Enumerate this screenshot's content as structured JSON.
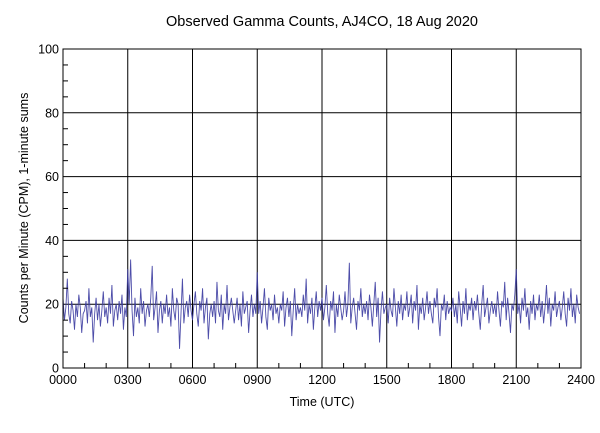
{
  "chart_data": {
    "type": "line",
    "title": "Observed Gamma Counts, AJ4CO, 18 Aug 2020",
    "xlabel": "Time (UTC)",
    "ylabel": "Counts per Minute (CPM), 1-minute sums",
    "xlim_minutes": [
      0,
      1440
    ],
    "ylim": [
      0,
      100
    ],
    "x_ticks": [
      "0000",
      "0300",
      "0600",
      "0900",
      "1200",
      "1500",
      "1800",
      "2100",
      "2400"
    ],
    "y_ticks": [
      "0",
      "20",
      "40",
      "60",
      "80",
      "100"
    ],
    "grid": true,
    "line_color": "#3a3aa0",
    "series": [
      {
        "name": "CPM",
        "x_start_minutes": 0,
        "x_step_minutes": 4,
        "values": [
          22,
          15,
          19,
          28,
          17,
          14,
          21,
          18,
          12,
          20,
          16,
          23,
          19,
          11,
          17,
          18,
          21,
          14,
          25,
          16,
          19,
          8,
          17,
          22,
          15,
          20,
          13,
          18,
          24,
          16,
          19,
          14,
          22,
          17,
          26,
          13,
          18,
          20,
          15,
          21,
          17,
          23,
          12,
          19,
          16,
          31,
          20,
          34,
          18,
          10,
          22,
          16,
          19,
          14,
          25,
          17,
          21,
          13,
          18,
          20,
          16,
          22,
          32,
          15,
          19,
          24,
          11,
          18,
          21,
          14,
          20,
          17,
          23,
          16,
          19,
          13,
          25,
          18,
          15,
          22,
          20,
          6,
          17,
          28,
          14,
          19,
          21,
          16,
          23,
          18,
          15,
          20,
          24,
          17,
          13,
          21,
          18,
          25,
          14,
          19,
          22,
          9,
          17,
          20,
          16,
          21,
          14,
          27,
          18,
          16,
          23,
          12,
          20,
          17,
          26,
          15,
          19,
          22,
          18,
          14,
          18,
          22,
          15,
          20,
          13,
          24,
          17,
          19,
          21,
          11,
          18,
          23,
          16,
          20,
          17,
          30,
          17,
          21,
          14,
          19,
          25,
          16,
          12,
          22,
          18,
          20,
          15,
          23,
          17,
          19,
          14,
          20,
          18,
          24,
          13,
          19,
          22,
          16,
          21,
          10,
          18,
          25,
          15,
          20,
          17,
          19,
          16,
          23,
          18,
          28,
          14,
          20,
          17,
          22,
          12,
          19,
          24,
          16,
          21,
          18,
          22,
          15,
          19,
          26,
          17,
          13,
          21,
          18,
          24,
          11,
          20,
          16,
          23,
          19,
          15,
          18,
          24,
          16,
          20,
          33,
          14,
          19,
          22,
          17,
          12,
          21,
          18,
          25,
          16,
          20,
          17,
          21,
          15,
          23,
          19,
          13,
          20,
          27,
          16,
          22,
          8,
          18,
          24,
          17,
          19,
          20,
          14,
          22,
          18,
          16,
          25,
          19,
          13,
          21,
          17,
          23,
          15,
          20,
          18,
          24,
          16,
          19,
          23,
          14,
          21,
          18,
          26,
          12,
          20,
          17,
          22,
          15,
          19,
          24,
          17,
          21,
          17,
          14,
          22,
          19,
          25,
          16,
          10,
          20,
          18,
          23,
          15,
          21,
          17,
          19,
          18,
          22,
          16,
          20,
          14,
          24,
          19,
          13,
          21,
          17,
          25,
          15,
          20,
          18,
          22,
          15,
          21,
          18,
          23,
          17,
          12,
          20,
          26,
          16,
          19,
          22,
          14,
          18,
          21,
          17,
          20,
          16,
          24,
          18,
          13,
          21,
          19,
          27,
          15,
          22,
          17,
          11,
          20,
          18,
          23,
          31,
          17,
          20,
          14,
          22,
          18,
          25,
          16,
          19,
          12,
          21,
          17,
          23,
          15,
          20,
          18,
          23,
          16,
          21,
          14,
          19,
          26,
          17,
          22,
          13,
          20,
          18,
          24,
          16,
          19,
          21,
          15,
          19,
          24,
          17,
          13,
          22,
          18,
          25,
          16,
          20,
          14,
          23,
          19,
          17
        ]
      }
    ]
  }
}
